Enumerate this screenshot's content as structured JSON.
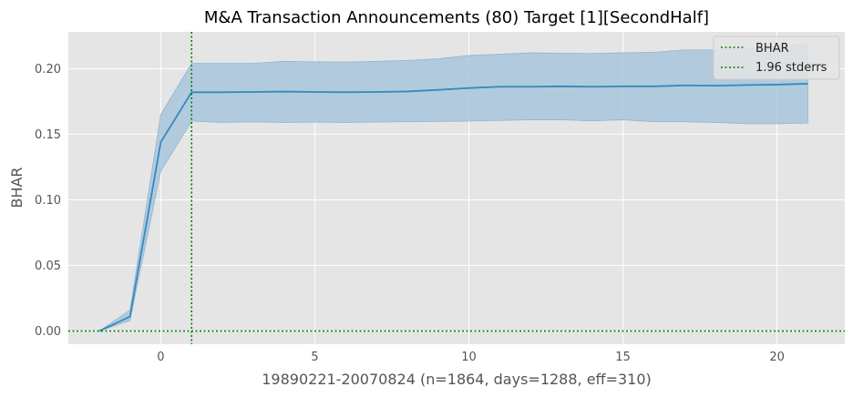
{
  "chart_data": {
    "type": "line",
    "title": "M&A Transaction Announcements (80) Target [1][SecondHalf]",
    "xlabel": "19890221-20070824 (n=1864, days=1288, eff=310)",
    "ylabel": "BHAR",
    "xlim": [
      -3,
      22.2
    ],
    "ylim": [
      -0.01,
      0.228
    ],
    "x_ticks": [
      0,
      5,
      10,
      15,
      20
    ],
    "x_tick_labels": [
      "0",
      "5",
      "10",
      "15",
      "20"
    ],
    "y_ticks": [
      0.0,
      0.05,
      0.1,
      0.15,
      0.2
    ],
    "y_tick_labels": [
      "0.00",
      "0.05",
      "0.10",
      "0.15",
      "0.20"
    ],
    "grid": true,
    "legend_position": "top-right",
    "series": [
      {
        "name": "BHAR",
        "color": "#348abd",
        "x": [
          -2,
          -1,
          0,
          1,
          2,
          3,
          4,
          5,
          6,
          7,
          8,
          9,
          10,
          11,
          12,
          13,
          14,
          15,
          16,
          17,
          18,
          19,
          20,
          21
        ],
        "values": [
          0.0,
          0.011,
          0.144,
          0.182,
          0.182,
          0.1822,
          0.1825,
          0.1822,
          0.182,
          0.1822,
          0.1826,
          0.1838,
          0.1852,
          0.1862,
          0.1862,
          0.1865,
          0.1862,
          0.1865,
          0.1865,
          0.1872,
          0.187,
          0.1875,
          0.1878,
          0.1885
        ],
        "lower": [
          0.0,
          0.008,
          0.122,
          0.16,
          0.159,
          0.1595,
          0.159,
          0.1592,
          0.159,
          0.1593,
          0.1595,
          0.1598,
          0.16,
          0.1605,
          0.161,
          0.161,
          0.1602,
          0.161,
          0.1595,
          0.1595,
          0.159,
          0.158,
          0.158,
          0.1585
        ],
        "upper": [
          0.0,
          0.016,
          0.165,
          0.204,
          0.204,
          0.204,
          0.2055,
          0.2052,
          0.205,
          0.2055,
          0.2062,
          0.2075,
          0.21,
          0.211,
          0.212,
          0.2118,
          0.2115,
          0.212,
          0.2125,
          0.2142,
          0.2142,
          0.215,
          0.2175,
          0.2185
        ]
      }
    ],
    "reference_lines": [
      {
        "orientation": "vertical",
        "x": 1,
        "color": "#008000",
        "style": "dotted"
      },
      {
        "orientation": "horizontal",
        "y": 0.0,
        "color": "#008000",
        "style": "dotted"
      }
    ],
    "legend": [
      {
        "label": "BHAR",
        "color": "#008000",
        "style": "dotted"
      },
      {
        "label": "1.96 stderrs",
        "color": "#008000",
        "style": "dotted"
      }
    ],
    "colors": {
      "plot_background": "#e5e5e5",
      "grid": "#ffffff",
      "band": "#a9c6dc",
      "line": "#348abd",
      "reference": "#008000"
    }
  }
}
